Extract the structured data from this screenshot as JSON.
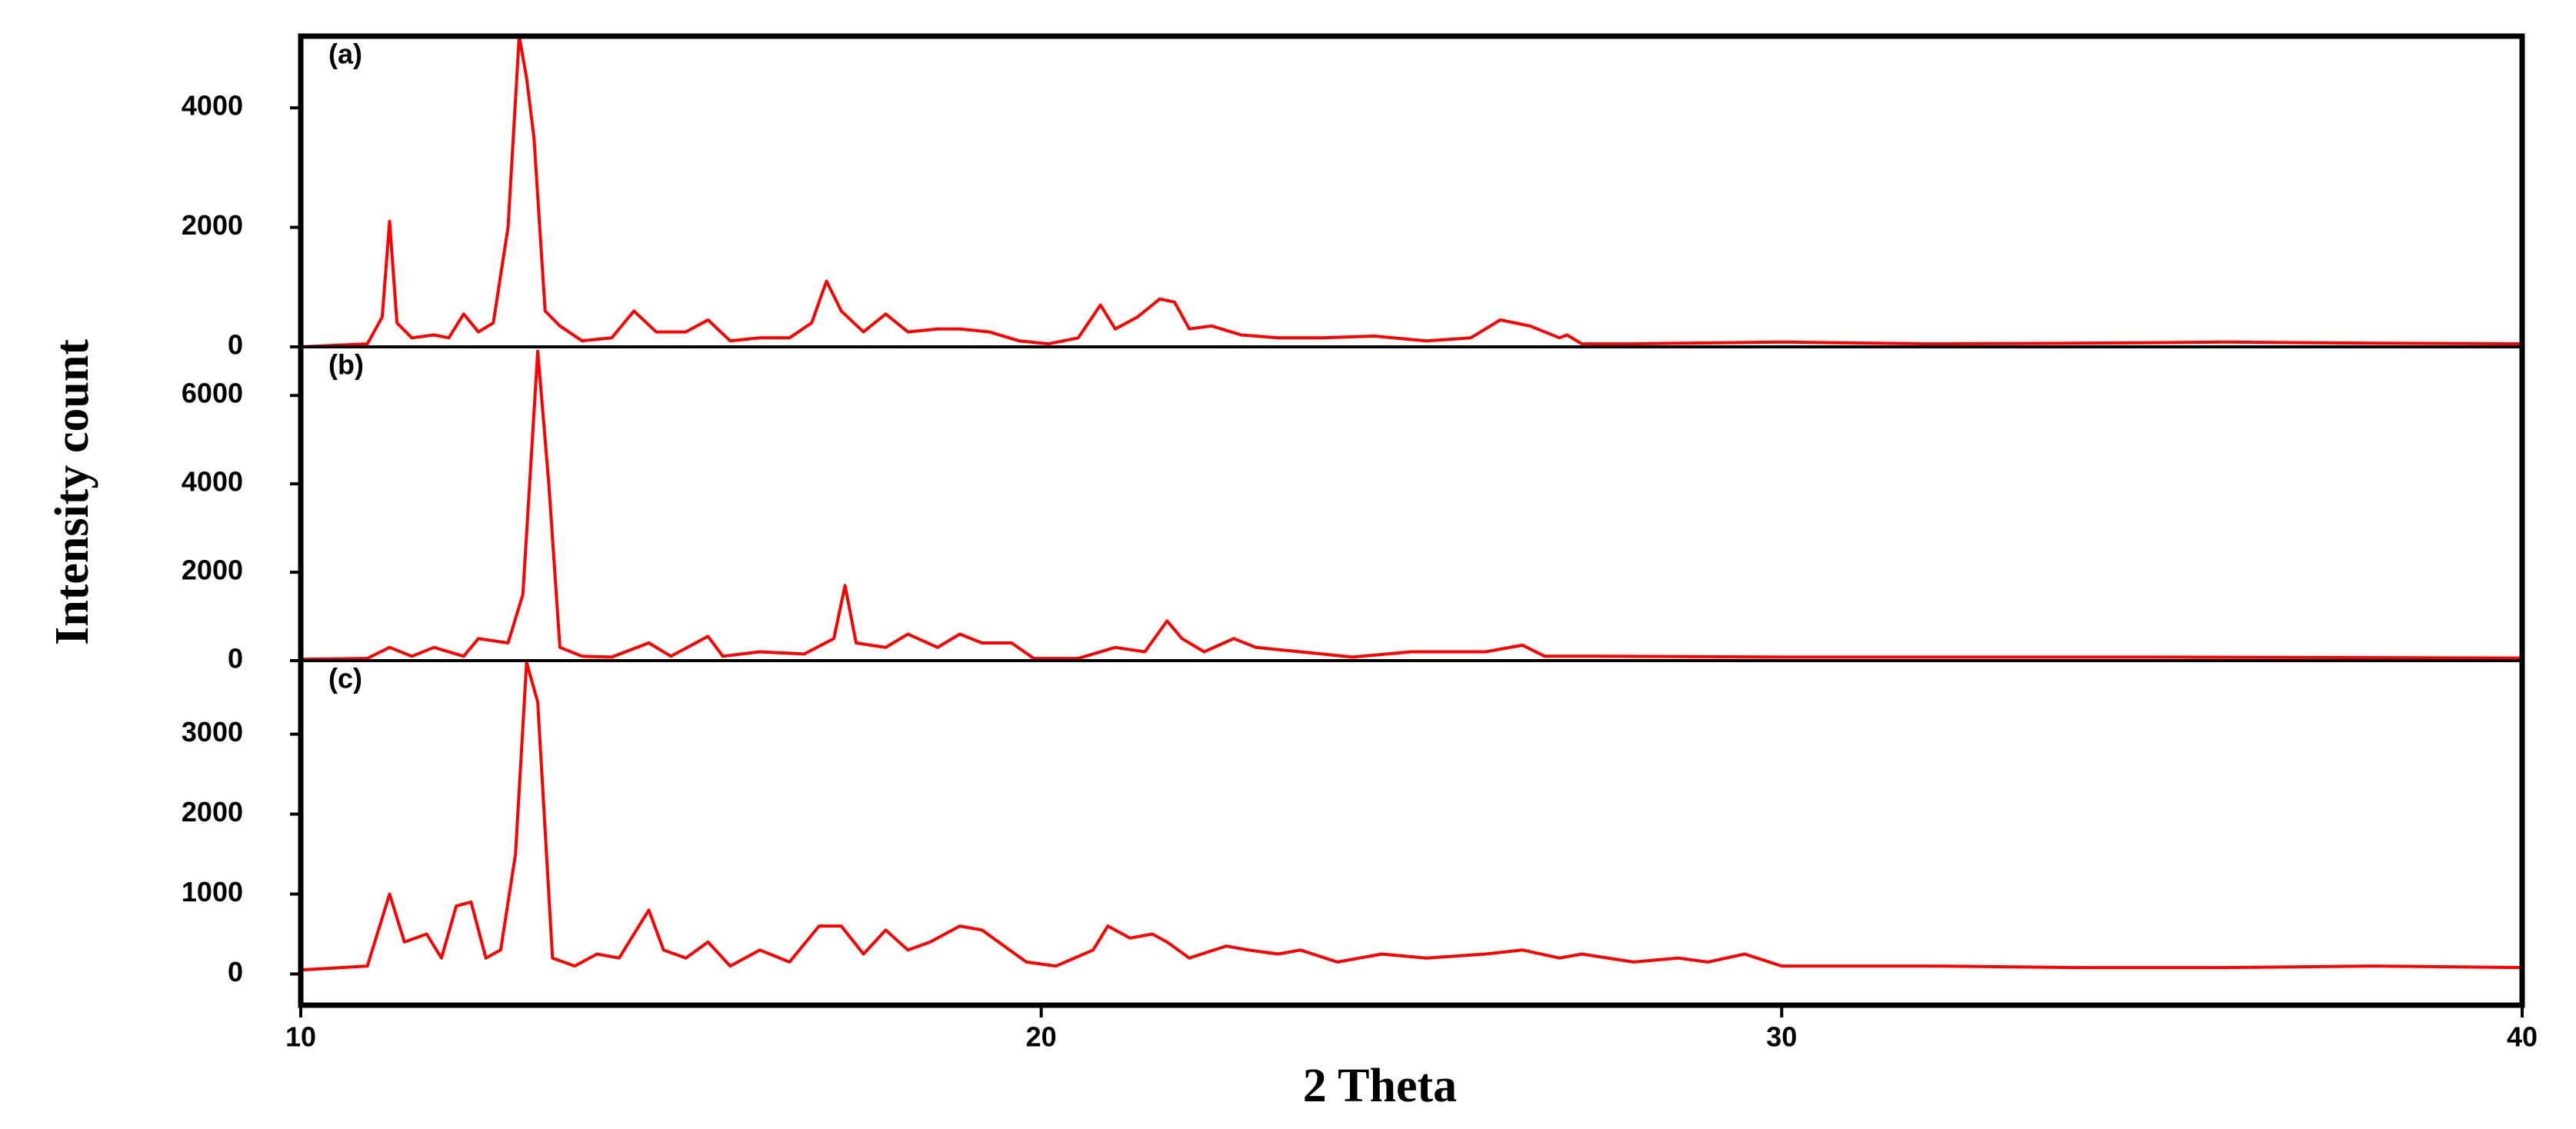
{
  "chart_data": [
    {
      "type": "line",
      "annotation": "(a)",
      "ylabel": "Intensity count",
      "color": "#ff0000",
      "xlim": [
        10,
        40
      ],
      "ylim": [
        0,
        5200
      ],
      "yticks": [
        0,
        2000,
        4000
      ],
      "x": [
        10.0,
        10.9,
        11.1,
        11.2,
        11.3,
        11.5,
        11.8,
        12.0,
        12.2,
        12.4,
        12.6,
        12.8,
        12.95,
        13.05,
        13.15,
        13.3,
        13.5,
        13.8,
        14.2,
        14.5,
        14.8,
        15.2,
        15.5,
        15.8,
        16.2,
        16.6,
        16.9,
        17.1,
        17.3,
        17.6,
        17.9,
        18.2,
        18.6,
        18.9,
        19.3,
        19.7,
        20.1,
        20.5,
        20.8,
        21.0,
        21.3,
        21.6,
        21.8,
        22.0,
        22.3,
        22.7,
        23.2,
        23.8,
        24.5,
        25.2,
        25.8,
        26.2,
        26.6,
        27.0,
        27.1,
        27.3,
        28,
        30,
        32,
        34,
        36,
        38,
        40
      ],
      "values": [
        0,
        50,
        500,
        2100,
        400,
        150,
        200,
        150,
        550,
        250,
        400,
        2000,
        5200,
        4500,
        3500,
        600,
        350,
        100,
        150,
        600,
        250,
        250,
        450,
        100,
        150,
        150,
        400,
        1100,
        600,
        250,
        550,
        250,
        300,
        300,
        250,
        100,
        50,
        150,
        700,
        300,
        500,
        800,
        750,
        300,
        350,
        200,
        150,
        150,
        180,
        100,
        150,
        450,
        350,
        150,
        200,
        50,
        50,
        80,
        50,
        60,
        80,
        60,
        50
      ]
    },
    {
      "type": "line",
      "annotation": "(b)",
      "color": "#ff0000",
      "xlim": [
        10,
        40
      ],
      "ylim": [
        0,
        7100
      ],
      "yticks": [
        0,
        2000,
        4000,
        6000
      ],
      "x": [
        10,
        10.9,
        11.2,
        11.5,
        11.8,
        12.2,
        12.4,
        12.8,
        13.0,
        13.2,
        13.35,
        13.5,
        13.8,
        14.2,
        14.7,
        15.0,
        15.5,
        15.7,
        16.2,
        16.8,
        17.2,
        17.35,
        17.5,
        17.9,
        18.2,
        18.6,
        18.9,
        19.2,
        19.6,
        19.9,
        20.5,
        21.0,
        21.4,
        21.7,
        21.9,
        22.2,
        22.6,
        22.9,
        23.5,
        24.2,
        25,
        26,
        26.5,
        26.8,
        27.5,
        30,
        35,
        40
      ],
      "values": [
        30,
        50,
        300,
        100,
        300,
        100,
        500,
        400,
        1500,
        7000,
        4000,
        300,
        100,
        80,
        400,
        100,
        550,
        100,
        200,
        150,
        500,
        1700,
        400,
        300,
        600,
        300,
        600,
        400,
        400,
        50,
        50,
        300,
        200,
        900,
        500,
        200,
        500,
        300,
        200,
        80,
        200,
        200,
        350,
        100,
        100,
        80,
        80,
        60
      ]
    },
    {
      "type": "line",
      "annotation": "(c)",
      "xlabel": "2 Theta",
      "color": "#ff0000",
      "xlim": [
        10,
        40
      ],
      "xticks": [
        10,
        20,
        30,
        40
      ],
      "ylim": [
        -390,
        3920
      ],
      "yticks": [
        0,
        1000,
        2000,
        3000
      ],
      "x": [
        10,
        10.9,
        11.2,
        11.4,
        11.7,
        11.9,
        12.1,
        12.3,
        12.5,
        12.7,
        12.9,
        13.05,
        13.2,
        13.4,
        13.7,
        14.0,
        14.3,
        14.7,
        14.9,
        15.2,
        15.5,
        15.8,
        16.2,
        16.6,
        17.0,
        17.3,
        17.6,
        17.9,
        18.2,
        18.5,
        18.9,
        19.2,
        19.5,
        19.8,
        20.2,
        20.7,
        20.9,
        21.2,
        21.5,
        21.7,
        22.0,
        22.5,
        22.8,
        23.2,
        23.5,
        24,
        24.6,
        25.2,
        26,
        26.5,
        27.0,
        27.3,
        28,
        28.6,
        29,
        29.5,
        30,
        32,
        34,
        36,
        38,
        40
      ],
      "values": [
        50,
        100,
        1000,
        400,
        500,
        200,
        850,
        900,
        200,
        300,
        1500,
        3900,
        3400,
        200,
        100,
        250,
        200,
        800,
        300,
        200,
        400,
        100,
        300,
        150,
        600,
        600,
        250,
        550,
        300,
        400,
        600,
        550,
        350,
        150,
        100,
        300,
        600,
        450,
        500,
        400,
        200,
        350,
        300,
        250,
        300,
        150,
        250,
        200,
        250,
        300,
        200,
        250,
        150,
        200,
        150,
        250,
        100,
        100,
        80,
        80,
        100,
        80
      ]
    }
  ]
}
